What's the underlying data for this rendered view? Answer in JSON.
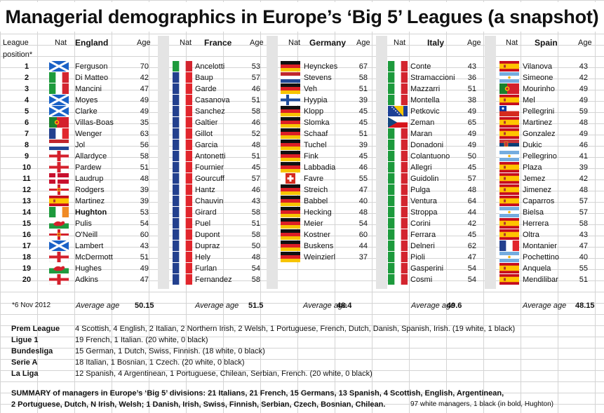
{
  "title": "Managerial demographics in Europe’s ‘Big 5’ Leagues (a snapshot)",
  "headers": {
    "league": "League",
    "position": "position*",
    "nat": "Nat",
    "age": "Age",
    "england": "England",
    "france": "France",
    "germany": "Germany",
    "italy": "Italy",
    "spain": "Spain"
  },
  "positions": [
    "1",
    "2",
    "3",
    "4",
    "5",
    "6",
    "7",
    "8",
    "9",
    "10",
    "11",
    "12",
    "13",
    "14",
    "15",
    "16",
    "17",
    "18",
    "19",
    "20"
  ],
  "leagues": [
    {
      "key": "england",
      "rows": [
        {
          "name": "Ferguson",
          "age": "70",
          "flag": "scotland"
        },
        {
          "name": "Di Matteo",
          "age": "42",
          "flag": "italy"
        },
        {
          "name": "Mancini",
          "age": "47",
          "flag": "italy"
        },
        {
          "name": "Moyes",
          "age": "49",
          "flag": "scotland"
        },
        {
          "name": "Clarke",
          "age": "49",
          "flag": "scotland"
        },
        {
          "name": "Villas-Boas",
          "age": "35",
          "flag": "portugal"
        },
        {
          "name": "Wenger",
          "age": "63",
          "flag": "france"
        },
        {
          "name": "Jol",
          "age": "56",
          "flag": "netherlands"
        },
        {
          "name": "Allardyce",
          "age": "58",
          "flag": "england"
        },
        {
          "name": "Pardew",
          "age": "51",
          "flag": "england"
        },
        {
          "name": "Laudrup",
          "age": "48",
          "flag": "denmark"
        },
        {
          "name": "Rodgers",
          "age": "39",
          "flag": "northern-ireland"
        },
        {
          "name": "Martinez",
          "age": "39",
          "flag": "spain"
        },
        {
          "name": "Hughton",
          "age": "53",
          "flag": "ireland",
          "bold": true
        },
        {
          "name": "Pulis",
          "age": "54",
          "flag": "wales"
        },
        {
          "name": "O'Neill",
          "age": "60",
          "flag": "northern-ireland"
        },
        {
          "name": "Lambert",
          "age": "43",
          "flag": "scotland"
        },
        {
          "name": "McDermott",
          "age": "51",
          "flag": "england"
        },
        {
          "name": "Hughes",
          "age": "49",
          "flag": "wales"
        },
        {
          "name": "Adkins",
          "age": "47",
          "flag": "england"
        }
      ],
      "average_label": "Average age",
      "average": "50.15"
    },
    {
      "key": "france",
      "rows": [
        {
          "name": "Ancelotti",
          "age": "53",
          "flag": "italy"
        },
        {
          "name": "Baup",
          "age": "57",
          "flag": "france"
        },
        {
          "name": "Garde",
          "age": "46",
          "flag": "france"
        },
        {
          "name": "Casanova",
          "age": "51",
          "flag": "france"
        },
        {
          "name": "Sanchez",
          "age": "58",
          "flag": "france"
        },
        {
          "name": "Galtier",
          "age": "46",
          "flag": "france"
        },
        {
          "name": "Gillot",
          "age": "52",
          "flag": "france"
        },
        {
          "name": "Garcia",
          "age": "48",
          "flag": "france"
        },
        {
          "name": "Antonetti",
          "age": "51",
          "flag": "france"
        },
        {
          "name": "Fournier",
          "age": "45",
          "flag": "france"
        },
        {
          "name": "Gourcuff",
          "age": "57",
          "flag": "france"
        },
        {
          "name": "Hantz",
          "age": "46",
          "flag": "france"
        },
        {
          "name": "Chauvin",
          "age": "43",
          "flag": "france"
        },
        {
          "name": "Girard",
          "age": "58",
          "flag": "france"
        },
        {
          "name": "Puel",
          "age": "51",
          "flag": "france"
        },
        {
          "name": "Dupont",
          "age": "58",
          "flag": "france"
        },
        {
          "name": "Dupraz",
          "age": "50",
          "flag": "france"
        },
        {
          "name": "Hely",
          "age": "48",
          "flag": "france"
        },
        {
          "name": "Furlan",
          "age": "54",
          "flag": "france"
        },
        {
          "name": "Fernandez",
          "age": "58",
          "flag": "france"
        }
      ],
      "average_label": "Average age",
      "average": "51.5"
    },
    {
      "key": "germany",
      "rows": [
        {
          "name": "Heynckes",
          "age": "67",
          "flag": "germany"
        },
        {
          "name": "Stevens",
          "age": "58",
          "flag": "netherlands"
        },
        {
          "name": "Veh",
          "age": "51",
          "flag": "germany"
        },
        {
          "name": "Hyypia",
          "age": "39",
          "flag": "finland"
        },
        {
          "name": "Klopp",
          "age": "45",
          "flag": "germany"
        },
        {
          "name": "Slomka",
          "age": "45",
          "flag": "germany"
        },
        {
          "name": "Schaaf",
          "age": "51",
          "flag": "germany"
        },
        {
          "name": "Tuchel",
          "age": "39",
          "flag": "germany"
        },
        {
          "name": "Fink",
          "age": "45",
          "flag": "germany"
        },
        {
          "name": "Labbadia",
          "age": "46",
          "flag": "germany"
        },
        {
          "name": "Favre",
          "age": "55",
          "flag": "switzerland"
        },
        {
          "name": "Streich",
          "age": "47",
          "flag": "germany"
        },
        {
          "name": "Babbel",
          "age": "40",
          "flag": "germany"
        },
        {
          "name": "Hecking",
          "age": "48",
          "flag": "germany"
        },
        {
          "name": "Meier",
          "age": "54",
          "flag": "germany"
        },
        {
          "name": "Kostner",
          "age": "60",
          "flag": "germany"
        },
        {
          "name": "Buskens",
          "age": "44",
          "flag": "germany"
        },
        {
          "name": "Weinzierl",
          "age": "37",
          "flag": "germany"
        }
      ],
      "average_label": "Average age",
      "average": "48.4"
    },
    {
      "key": "italy",
      "rows": [
        {
          "name": "Conte",
          "age": "43",
          "flag": "italy"
        },
        {
          "name": "Stramaccioni",
          "age": "36",
          "flag": "italy"
        },
        {
          "name": "Mazzarri",
          "age": "51",
          "flag": "italy"
        },
        {
          "name": "Montella",
          "age": "38",
          "flag": "italy"
        },
        {
          "name": "Petkovic",
          "age": "49",
          "flag": "bosnia"
        },
        {
          "name": "Zeman",
          "age": "65",
          "flag": "czech"
        },
        {
          "name": "Maran",
          "age": "49",
          "flag": "italy"
        },
        {
          "name": "Donadoni",
          "age": "49",
          "flag": "italy"
        },
        {
          "name": "Colantuono",
          "age": "50",
          "flag": "italy"
        },
        {
          "name": "Allegri",
          "age": "45",
          "flag": "italy"
        },
        {
          "name": "Guidolin",
          "age": "57",
          "flag": "italy"
        },
        {
          "name": "Pulga",
          "age": "48",
          "flag": "italy"
        },
        {
          "name": "Ventura",
          "age": "64",
          "flag": "italy"
        },
        {
          "name": "Stroppa",
          "age": "44",
          "flag": "italy"
        },
        {
          "name": "Corini",
          "age": "42",
          "flag": "italy"
        },
        {
          "name": "Ferrara",
          "age": "45",
          "flag": "italy"
        },
        {
          "name": "Delneri",
          "age": "62",
          "flag": "italy"
        },
        {
          "name": "Pioli",
          "age": "47",
          "flag": "italy"
        },
        {
          "name": "Gasperini",
          "age": "54",
          "flag": "italy"
        },
        {
          "name": "Cosmi",
          "age": "54",
          "flag": "italy"
        }
      ],
      "average_label": "Average age",
      "average": "49.6"
    },
    {
      "key": "spain",
      "rows": [
        {
          "name": "Vilanova",
          "age": "43",
          "flag": "spain"
        },
        {
          "name": "Simeone",
          "age": "42",
          "flag": "argentina"
        },
        {
          "name": "Mourinho",
          "age": "49",
          "flag": "portugal"
        },
        {
          "name": "Mel",
          "age": "49",
          "flag": "spain"
        },
        {
          "name": "Pellegrini",
          "age": "59",
          "flag": "chile"
        },
        {
          "name": "Martinez",
          "age": "48",
          "flag": "spain"
        },
        {
          "name": "Gonzalez",
          "age": "49",
          "flag": "spain"
        },
        {
          "name": "Dukic",
          "age": "46",
          "flag": "serbia"
        },
        {
          "name": "Pellegrino",
          "age": "41",
          "flag": "argentina"
        },
        {
          "name": "Plaza",
          "age": "39",
          "flag": "spain"
        },
        {
          "name": "Jemez",
          "age": "42",
          "flag": "spain"
        },
        {
          "name": "Jimenez",
          "age": "48",
          "flag": "spain"
        },
        {
          "name": "Caparros",
          "age": "57",
          "flag": "spain"
        },
        {
          "name": "Bielsa",
          "age": "57",
          "flag": "argentina"
        },
        {
          "name": "Herrera",
          "age": "58",
          "flag": "spain"
        },
        {
          "name": "Oltra",
          "age": "43",
          "flag": "spain"
        },
        {
          "name": "Montanier",
          "age": "47",
          "flag": "france"
        },
        {
          "name": "Pochettino",
          "age": "40",
          "flag": "argentina"
        },
        {
          "name": "Anquela",
          "age": "55",
          "flag": "spain"
        },
        {
          "name": "Mendilibar",
          "age": "51",
          "flag": "spain"
        }
      ],
      "average_label": "Average age",
      "average": "48.15"
    }
  ],
  "footnote": "*6 Nov 2012",
  "league_summaries": [
    {
      "league": "Prem League",
      "text": "4 Scottish, 4 English, 2 Italian, 2 Northern Irish, 2 Welsh, 1 Portuguese, French, Dutch, Danish, Spanish, Irish. (19 white, 1 black)"
    },
    {
      "league": "Ligue 1",
      "text": "19 French, 1 Italian. (20 white, 0 black)"
    },
    {
      "league": "Bundesliga",
      "text": "15 German, 1 Dutch, Swiss, Finnish. (18 white, 0 black)"
    },
    {
      "league": "Serie A",
      "text": "18 Italian, 1 Bosnian, 1 Czech. (20 white, 0 black)"
    },
    {
      "league": "La Liga",
      "text": "12 Spanish, 4 Argentinean, 1 Portuguese, Chilean, Serbian, French. (20 white, 0 black)"
    }
  ],
  "summary": {
    "line1": "SUMMARY of managers in Europe’s ‘Big 5’ divisions: 21 Italians, 21 French, 15 Germans, 13 Spanish, 4 Scottish, English, Argentinean,",
    "line2": "2 Portuguese, Dutch, N Irish, Welsh; 1 Danish, Irish, Swiss, Finnish, Serbian, Czech, Bosnian, Chilean.",
    "note": "97 white managers, 1 black (in bold, Hughton)"
  }
}
